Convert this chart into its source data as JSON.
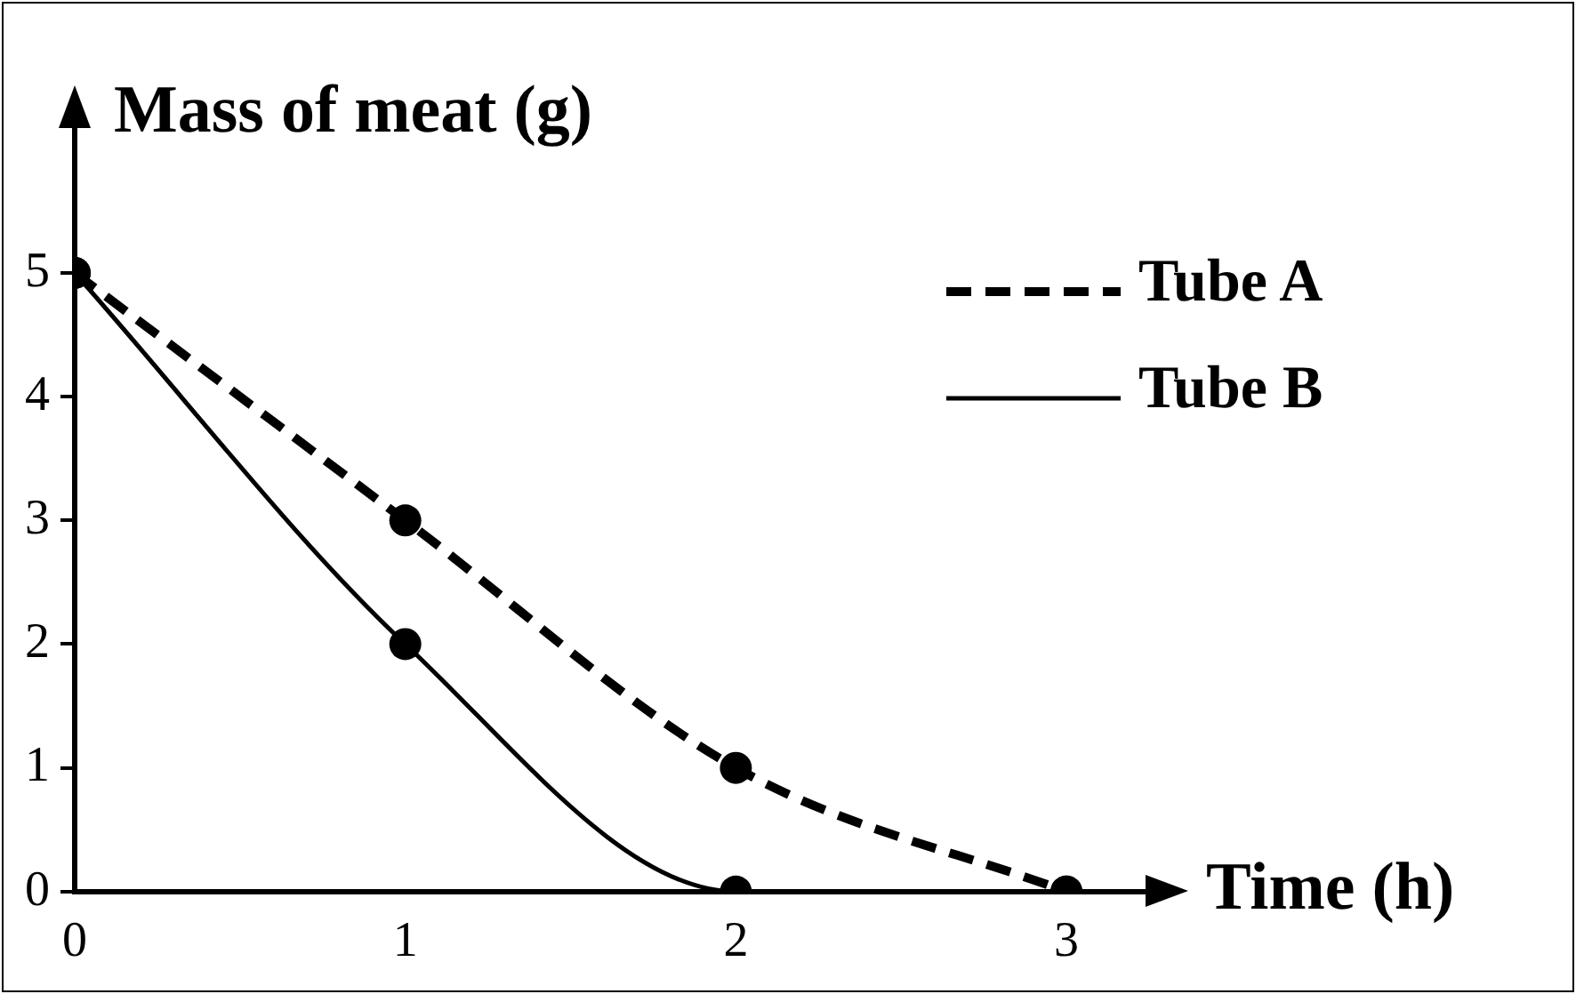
{
  "chart_data": {
    "type": "line",
    "xlabel": "Time (h)",
    "ylabel": "Mass of meat (g)",
    "x": [
      0,
      1,
      2,
      3
    ],
    "xlim": [
      0,
      3.25
    ],
    "xticks": [
      0,
      1,
      2,
      3
    ],
    "ylim": [
      0,
      6.2
    ],
    "yticks": [
      0,
      1,
      2,
      3,
      4,
      5
    ],
    "series": [
      {
        "name": "Tube A",
        "color": "#000000",
        "values": [
          5,
          3,
          1,
          0
        ],
        "line_style": "dashed"
      },
      {
        "name": "Tube B",
        "color": "#000000",
        "values": [
          5,
          2,
          0,
          0
        ],
        "line_style": "solid"
      }
    ],
    "marker": "circle",
    "grid": false,
    "legend": "top right"
  }
}
